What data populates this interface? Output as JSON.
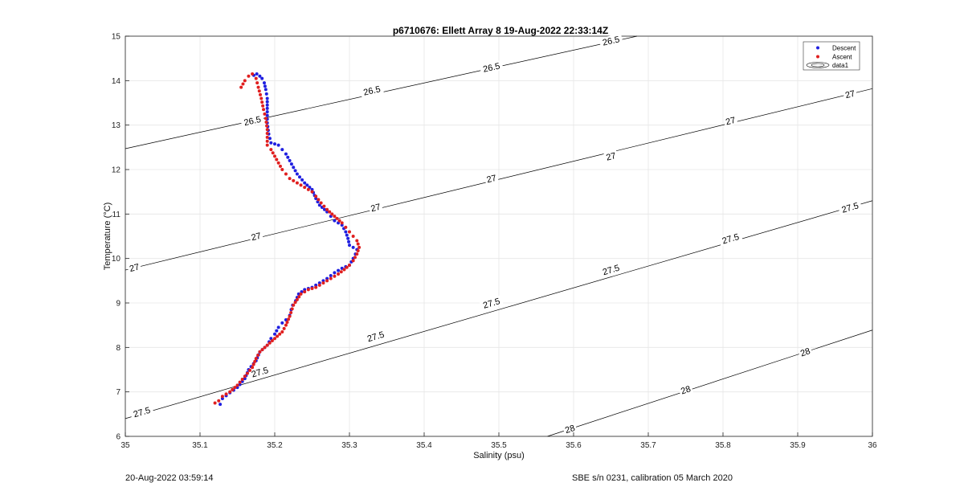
{
  "chart_data": {
    "type": "scatter",
    "title": "p6710676: Ellett Array 8 19-Aug-2022 22:33:14Z",
    "xlabel": "Salinity (psu)",
    "ylabel": "Temperature (°C)",
    "xlim": [
      35,
      36
    ],
    "ylim": [
      6,
      15
    ],
    "xticks": [
      "35",
      "35.1",
      "35.2",
      "35.3",
      "35.4",
      "35.5",
      "35.6",
      "35.7",
      "35.8",
      "35.9",
      "36"
    ],
    "yticks": [
      "6",
      "7",
      "8",
      "9",
      "10",
      "11",
      "12",
      "13",
      "14",
      "15"
    ],
    "grid": true,
    "legend": "top-right",
    "legend_entries": [
      "Descent",
      "Ascent",
      "data1"
    ],
    "colors": {
      "descent": "#1f1fe0",
      "ascent": "#e01f1f",
      "contour": "#000000"
    },
    "series": [
      {
        "name": "Descent",
        "x": [
          35.127,
          35.13,
          35.14,
          35.15,
          35.16,
          35.165,
          35.175,
          35.18,
          35.19,
          35.195,
          35.2,
          35.205,
          35.21,
          35.215,
          35.22,
          35.222,
          35.224,
          35.228,
          35.232,
          35.24,
          35.25,
          35.26,
          35.27,
          35.28,
          35.29,
          35.3,
          35.305,
          35.308,
          35.31,
          35.3,
          35.298,
          35.295,
          35.29,
          35.28,
          35.275,
          35.27,
          35.26,
          35.255,
          35.25,
          35.24,
          35.23,
          35.225,
          35.22,
          35.215,
          35.21,
          35.205,
          35.195,
          35.192,
          35.19,
          35.19,
          35.19,
          35.188,
          35.186,
          35.183,
          35.18,
          35.176,
          35.172
        ],
        "y": [
          6.72,
          6.85,
          6.98,
          7.1,
          7.3,
          7.5,
          7.7,
          7.9,
          8.05,
          8.2,
          8.3,
          8.45,
          8.55,
          8.62,
          8.72,
          8.85,
          8.95,
          9.05,
          9.2,
          9.3,
          9.35,
          9.45,
          9.55,
          9.68,
          9.78,
          9.85,
          10.0,
          10.1,
          10.2,
          10.3,
          10.45,
          10.6,
          10.75,
          10.85,
          10.95,
          11.05,
          11.2,
          11.35,
          11.55,
          11.7,
          11.9,
          12.05,
          12.2,
          12.35,
          12.45,
          12.55,
          12.6,
          12.8,
          13.05,
          13.3,
          13.6,
          13.8,
          13.95,
          14.05,
          14.1,
          14.15,
          14.12
        ]
      },
      {
        "name": "Ascent",
        "x": [
          35.12,
          35.125,
          35.13,
          35.14,
          35.15,
          35.16,
          35.17,
          35.175,
          35.18,
          35.19,
          35.2,
          35.21,
          35.215,
          35.22,
          35.225,
          35.235,
          35.245,
          35.255,
          35.265,
          35.275,
          35.285,
          35.293,
          35.3,
          35.305,
          35.31,
          35.313,
          35.31,
          35.305,
          35.3,
          35.295,
          35.29,
          35.28,
          35.27,
          35.262,
          35.255,
          35.25,
          35.24,
          35.23,
          35.22,
          35.215,
          35.21,
          35.205,
          35.2,
          35.195,
          35.19,
          35.19,
          35.188,
          35.185,
          35.182,
          35.178,
          35.175,
          35.17,
          35.165,
          35.16,
          35.155
        ],
        "y": [
          6.75,
          6.8,
          6.9,
          7.0,
          7.15,
          7.35,
          7.55,
          7.75,
          7.9,
          8.05,
          8.2,
          8.35,
          8.5,
          8.7,
          8.95,
          9.2,
          9.3,
          9.35,
          9.45,
          9.55,
          9.65,
          9.75,
          9.85,
          9.95,
          10.1,
          10.25,
          10.4,
          10.5,
          10.6,
          10.7,
          10.8,
          10.95,
          11.1,
          11.25,
          11.4,
          11.5,
          11.6,
          11.7,
          11.8,
          11.9,
          12.0,
          12.15,
          12.3,
          12.45,
          12.55,
          12.9,
          13.15,
          13.35,
          13.6,
          13.85,
          14.05,
          14.15,
          14.1,
          14.0,
          13.85
        ]
      }
    ],
    "contours": [
      {
        "level": "26.5",
        "x": [
          35,
          35.685
        ],
        "y": [
          12.47,
          15
        ]
      },
      {
        "level": "27",
        "x": [
          35,
          36
        ],
        "y": [
          9.74,
          13.82
        ]
      },
      {
        "level": "27.5",
        "x": [
          35,
          36
        ],
        "y": [
          6.4,
          11.3
        ]
      },
      {
        "level": "28",
        "x": [
          35.565,
          36
        ],
        "y": [
          6,
          8.39
        ]
      }
    ],
    "contour_labels": [
      {
        "text": "26.5",
        "x": 35.17,
        "y": 13.1
      },
      {
        "text": "26.5",
        "x": 35.33,
        "y": 13.78
      },
      {
        "text": "26.5",
        "x": 35.49,
        "y": 14.3
      },
      {
        "text": "26.5",
        "x": 35.65,
        "y": 14.9
      },
      {
        "text": "27",
        "x": 35.012,
        "y": 9.8
      },
      {
        "text": "27",
        "x": 35.175,
        "y": 10.5
      },
      {
        "text": "27",
        "x": 35.335,
        "y": 11.15
      },
      {
        "text": "27",
        "x": 35.49,
        "y": 11.8
      },
      {
        "text": "27",
        "x": 35.65,
        "y": 12.3
      },
      {
        "text": "27",
        "x": 35.81,
        "y": 13.1
      },
      {
        "text": "27",
        "x": 35.97,
        "y": 13.7
      },
      {
        "text": "27.5",
        "x": 35.022,
        "y": 6.55
      },
      {
        "text": "27.5",
        "x": 35.18,
        "y": 7.45
      },
      {
        "text": "27.5",
        "x": 35.335,
        "y": 8.25
      },
      {
        "text": "27.5",
        "x": 35.49,
        "y": 9.0
      },
      {
        "text": "27.5",
        "x": 35.65,
        "y": 9.75
      },
      {
        "text": "27.5",
        "x": 35.81,
        "y": 10.45
      },
      {
        "text": "27.5",
        "x": 35.97,
        "y": 11.15
      },
      {
        "text": "28",
        "x": 35.595,
        "y": 6.17
      },
      {
        "text": "28",
        "x": 35.75,
        "y": 7.05
      },
      {
        "text": "28",
        "x": 35.91,
        "y": 7.9
      }
    ]
  },
  "footer": {
    "left": "20-Aug-2022 03:59:14",
    "right": "SBE s/n 0231, calibration 05 March 2020"
  }
}
